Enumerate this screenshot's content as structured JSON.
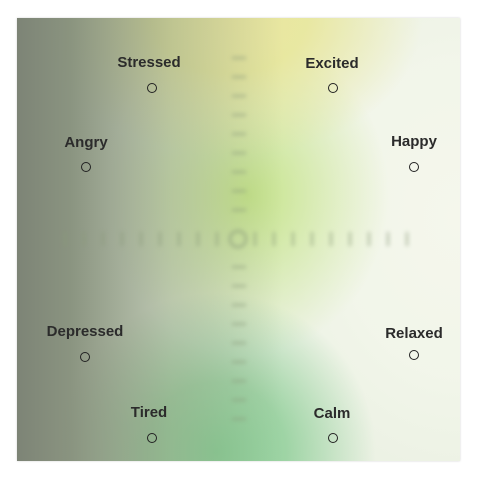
{
  "mood_grid": {
    "points": [
      {
        "key": "stressed",
        "label": "Stressed"
      },
      {
        "key": "excited",
        "label": "Excited"
      },
      {
        "key": "angry",
        "label": "Angry"
      },
      {
        "key": "happy",
        "label": "Happy"
      },
      {
        "key": "depressed",
        "label": "Depressed"
      },
      {
        "key": "relaxed",
        "label": "Relaxed"
      },
      {
        "key": "tired",
        "label": "Tired"
      },
      {
        "key": "calm",
        "label": "Calm"
      }
    ]
  }
}
